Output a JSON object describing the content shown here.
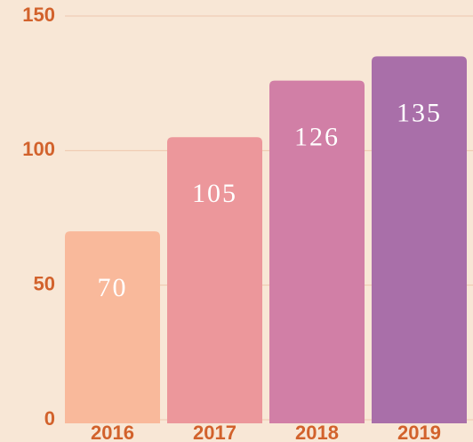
{
  "chart_data": {
    "type": "bar",
    "categories": [
      "2016",
      "2017",
      "2018",
      "2019"
    ],
    "values": [
      70,
      105,
      126,
      135
    ],
    "colors": [
      "#f9b99b",
      "#ec979b",
      "#d17fa6",
      "#a96fa9"
    ],
    "ylim": [
      0,
      150
    ],
    "yticks": [
      0,
      50,
      100,
      150
    ],
    "grid": true
  }
}
